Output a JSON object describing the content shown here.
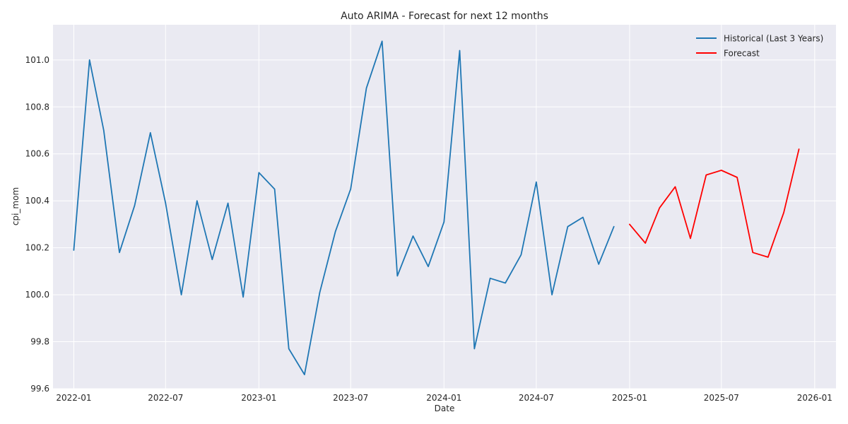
{
  "chart_data": {
    "type": "line",
    "title": "Auto ARIMA - Forecast for next 12 months",
    "xlabel": "Date",
    "ylabel": "cpi_mom",
    "xlim": [
      "2021-11-21",
      "2026-02-12"
    ],
    "ylim": [
      99.6,
      101.15
    ],
    "grid": true,
    "legend": "top-right",
    "x_ticks": [
      "2022-01",
      "2022-07",
      "2023-01",
      "2023-07",
      "2024-01",
      "2024-07",
      "2025-01",
      "2025-07",
      "2026-01"
    ],
    "y_ticks": [
      99.6,
      99.8,
      100.0,
      100.2,
      100.4,
      100.6,
      100.8,
      101.0
    ],
    "series": [
      {
        "name": "Historical (Last 3 Years)",
        "color": "#1f77b4",
        "x": [
          "2022-01",
          "2022-02",
          "2022-03",
          "2022-04",
          "2022-05",
          "2022-06",
          "2022-07",
          "2022-08",
          "2022-09",
          "2022-10",
          "2022-11",
          "2022-12",
          "2023-01",
          "2023-02",
          "2023-03",
          "2023-04",
          "2023-05",
          "2023-06",
          "2023-07",
          "2023-08",
          "2023-09",
          "2023-10",
          "2023-11",
          "2023-12",
          "2024-01",
          "2024-02",
          "2024-03",
          "2024-04",
          "2024-05",
          "2024-06",
          "2024-07",
          "2024-08",
          "2024-09",
          "2024-10",
          "2024-11",
          "2024-12"
        ],
        "values": [
          100.19,
          101.0,
          100.7,
          100.18,
          100.38,
          100.69,
          100.39,
          100.0,
          100.4,
          100.15,
          100.39,
          99.99,
          100.52,
          100.45,
          99.77,
          99.66,
          100.01,
          100.27,
          100.45,
          100.88,
          101.08,
          100.08,
          100.25,
          100.12,
          100.31,
          101.04,
          99.77,
          100.07,
          100.05,
          100.17,
          100.48,
          100.0,
          100.29,
          100.33,
          100.13,
          100.29
        ]
      },
      {
        "name": "Forecast",
        "color": "#ff0000",
        "x": [
          "2025-01",
          "2025-02",
          "2025-03",
          "2025-04",
          "2025-05",
          "2025-06",
          "2025-07",
          "2025-08",
          "2025-09",
          "2025-10",
          "2025-11",
          "2025-12"
        ],
        "values": [
          100.3,
          100.22,
          100.37,
          100.46,
          100.24,
          100.51,
          100.53,
          100.5,
          100.18,
          100.16,
          100.35,
          100.62
        ]
      }
    ]
  }
}
